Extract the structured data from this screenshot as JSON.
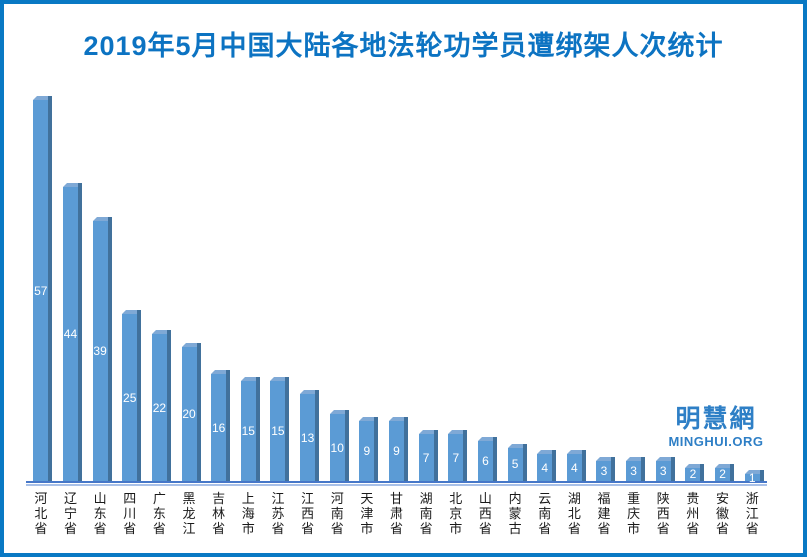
{
  "page": {
    "background": "#FFFFFF",
    "border_color": "#0979C4"
  },
  "header": {
    "title": "2019年5月中国大陆各地法轮功学员遭绑架人次统计",
    "title_color": "#0C73C2"
  },
  "watermark": {
    "brand": "明慧網",
    "site": "MINGHUI.ORG",
    "color": "#2E7FC6"
  },
  "chart_data": {
    "type": "bar",
    "style": "3d-column",
    "title": "2019年5月中国大陆各地法轮功学员遭绑架人次统计",
    "categories": [
      "河北省",
      "辽宁省",
      "山东省",
      "四川省",
      "广东省",
      "黑龙江",
      "吉林省",
      "上海市",
      "江苏省",
      "江西省",
      "河南省",
      "天津市",
      "甘肃省",
      "湖南省",
      "北京市",
      "山西省",
      "内蒙古",
      "云南省",
      "湖北省",
      "福建省",
      "重庆市",
      "陕西省",
      "贵州省",
      "安徽省",
      "浙江省"
    ],
    "values": [
      57,
      44,
      39,
      25,
      22,
      20,
      16,
      15,
      15,
      13,
      10,
      9,
      9,
      7,
      7,
      6,
      5,
      4,
      4,
      3,
      3,
      3,
      2,
      2,
      1
    ],
    "xlabel": "",
    "ylabel": "",
    "ylim": [
      0,
      60
    ],
    "grid": false,
    "legend": false,
    "value_labels_position": "inside-center",
    "x_tick_label_orientation": "vertical-stacked",
    "bar_color": "#5B9BD5",
    "bar_side_color": "#41719C",
    "bar_top_color": "#7FA9D6",
    "value_label_color": "#FFFFFF",
    "axis_line_color": "#4677C8",
    "axis_line_light_color": "#A8C0E8"
  }
}
